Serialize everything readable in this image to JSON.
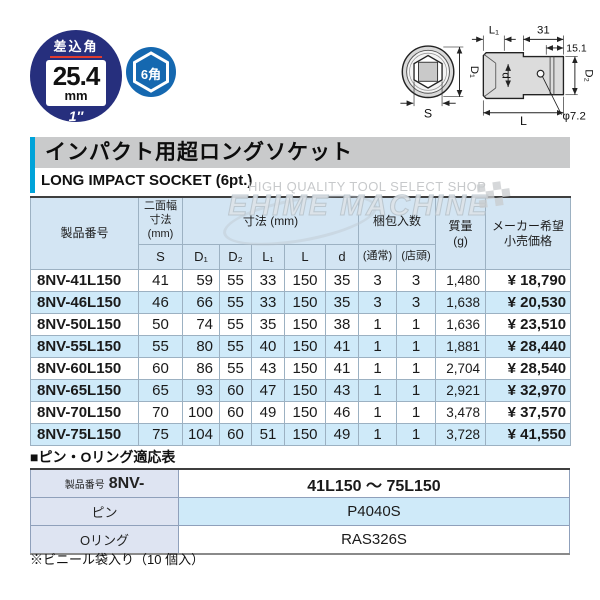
{
  "badges": {
    "drive_label": "差込角",
    "drive_size": "25.4",
    "drive_unit": "mm",
    "drive_inch": "1″",
    "hex_label": "6角"
  },
  "diagram": {
    "l1": "L₁",
    "len31": "31",
    "len151": "15.1",
    "d1": "D₁",
    "d": "d",
    "d2": "D₂",
    "s": "S",
    "l": "L",
    "pin_dia": "φ7.2"
  },
  "title": {
    "jp": "インパクト用超ロングソケット",
    "en": "LONG IMPACT SOCKET (6pt.)"
  },
  "watermark": {
    "tagline": "HIGH QUALITY TOOL SELECT SHOP",
    "brand": "EHIME MACHINE"
  },
  "main_table": {
    "headers": {
      "product": "製品番号",
      "width_across": "二面幅\n寸法\n(mm)",
      "dimensions": "寸法 (mm)",
      "packing": "梱包入数",
      "mass": "質量\n(g)",
      "price": "メーカー希望\n小売価格"
    },
    "sub": [
      "S",
      "D₁",
      "D₂",
      "L₁",
      "L",
      "d",
      "(通常)",
      "(店頭)"
    ],
    "rows": [
      [
        "8NV-41L150",
        "41",
        "59",
        "55",
        "33",
        "150",
        "35",
        "3",
        "3",
        "1,480",
        "¥ 18,790"
      ],
      [
        "8NV-46L150",
        "46",
        "66",
        "55",
        "33",
        "150",
        "35",
        "3",
        "3",
        "1,638",
        "¥ 20,530"
      ],
      [
        "8NV-50L150",
        "50",
        "74",
        "55",
        "35",
        "150",
        "38",
        "1",
        "1",
        "1,636",
        "¥ 23,510"
      ],
      [
        "8NV-55L150",
        "55",
        "80",
        "55",
        "40",
        "150",
        "41",
        "1",
        "1",
        "1,881",
        "¥ 28,440"
      ],
      [
        "8NV-60L150",
        "60",
        "86",
        "55",
        "43",
        "150",
        "41",
        "1",
        "1",
        "2,704",
        "¥ 28,540"
      ],
      [
        "8NV-65L150",
        "65",
        "93",
        "60",
        "47",
        "150",
        "43",
        "1",
        "1",
        "2,921",
        "¥ 32,970"
      ],
      [
        "8NV-70L150",
        "70",
        "100",
        "60",
        "49",
        "150",
        "46",
        "1",
        "1",
        "3,478",
        "¥ 37,570"
      ],
      [
        "8NV-75L150",
        "75",
        "104",
        "60",
        "51",
        "150",
        "49",
        "1",
        "1",
        "3,728",
        "¥ 41,550"
      ]
    ]
  },
  "pin_table": {
    "title": "■ピン・Oリング適応表",
    "product_label": "製品番号",
    "product_prefix": "8NV-",
    "product_range": "41L150 ～ 75L150",
    "pin_label": "ピン",
    "pin_value": "P4040S",
    "oring_label": "Oリング",
    "oring_value": "RAS326S"
  },
  "note": "※ビニール袋入り（10 個入）"
}
